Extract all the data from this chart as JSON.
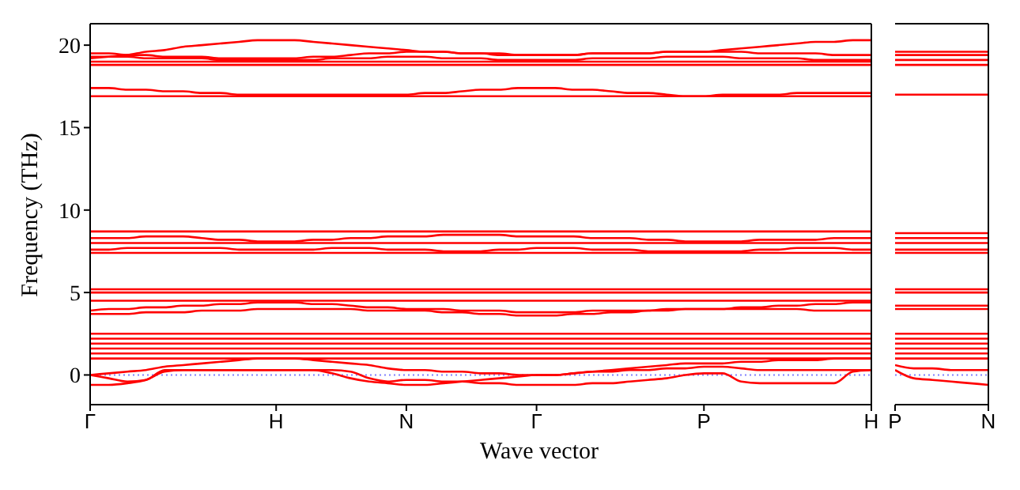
{
  "chart_data": [
    {
      "type": "line",
      "xlabel": "Wave vector",
      "ylabel": "Frequency (THz)",
      "ylim": [
        -1.8,
        21.3
      ],
      "yticks": [
        0,
        5,
        10,
        15,
        20
      ],
      "categories": [
        "Γ",
        null,
        null,
        null,
        null,
        null,
        null,
        null,
        null,
        null,
        "H",
        null,
        null,
        null,
        null,
        null,
        null,
        "N",
        null,
        null,
        null,
        null,
        null,
        null,
        "Γ",
        null,
        null,
        null,
        null,
        null,
        null,
        null,
        null,
        "P",
        null,
        null,
        null,
        null,
        null,
        null,
        null,
        null,
        "H"
      ],
      "marker": "none",
      "line_style": "solid",
      "ref_lines": [
        {
          "axis": "y",
          "value": 0,
          "color": "#8080ff",
          "line_style": "dotted"
        }
      ],
      "series": [
        {
          "color": "#ff0000",
          "values": [
            19.0,
            19.0,
            19.0,
            19.0,
            19.0,
            19.0,
            19.0,
            19.0,
            19.0,
            19.0,
            19.0,
            19.0,
            19.0,
            19.0,
            19.0,
            19.0,
            19.0,
            19.0,
            19.0,
            19.0,
            19.0,
            19.0,
            19.0,
            19.0,
            19.0,
            19.0,
            19.0,
            19.0,
            19.0,
            19.0,
            19.0,
            19.0,
            19.0,
            19.0,
            19.0,
            19.0,
            19.0,
            19.0,
            19.0,
            19.0,
            19.0,
            19.0,
            19.0
          ]
        },
        {
          "color": "#ff0000",
          "values": [
            19.2,
            19.3,
            19.4,
            19.6,
            19.7,
            19.9,
            20.0,
            20.1,
            20.2,
            20.3,
            20.3,
            20.3,
            20.2,
            20.1,
            20.0,
            19.9,
            19.8,
            19.7,
            19.6,
            19.6,
            19.5,
            19.5,
            19.4,
            19.4,
            19.4,
            19.4,
            19.4,
            19.5,
            19.5,
            19.5,
            19.5,
            19.6,
            19.6,
            19.6,
            19.7,
            19.8,
            19.9,
            20.0,
            20.1,
            20.2,
            20.2,
            20.3,
            20.3
          ]
        },
        {
          "color": "#ff0000",
          "values": [
            19.5,
            19.5,
            19.4,
            19.4,
            19.3,
            19.3,
            19.3,
            19.2,
            19.2,
            19.2,
            19.2,
            19.2,
            19.3,
            19.3,
            19.4,
            19.5,
            19.5,
            19.6,
            19.6,
            19.6,
            19.5,
            19.5,
            19.5,
            19.4,
            19.4,
            19.4,
            19.4,
            19.5,
            19.5,
            19.5,
            19.5,
            19.6,
            19.6,
            19.6,
            19.6,
            19.6,
            19.5,
            19.5,
            19.5,
            19.5,
            19.4,
            19.4,
            19.4
          ]
        },
        {
          "color": "#ff0000",
          "values": [
            19.3,
            19.3,
            19.3,
            19.2,
            19.2,
            19.2,
            19.2,
            19.1,
            19.1,
            19.1,
            19.1,
            19.1,
            19.1,
            19.2,
            19.2,
            19.2,
            19.3,
            19.3,
            19.3,
            19.2,
            19.2,
            19.2,
            19.1,
            19.1,
            19.1,
            19.1,
            19.1,
            19.2,
            19.2,
            19.2,
            19.2,
            19.3,
            19.3,
            19.3,
            19.3,
            19.2,
            19.2,
            19.2,
            19.2,
            19.1,
            19.1,
            19.1,
            19.1
          ]
        },
        {
          "color": "#ff0000",
          "values": [
            18.8,
            18.8,
            18.8,
            18.8,
            18.8,
            18.8,
            18.8,
            18.8,
            18.8,
            18.8,
            18.8,
            18.8,
            18.8,
            18.8,
            18.8,
            18.8,
            18.8,
            18.8,
            18.8,
            18.8,
            18.8,
            18.8,
            18.8,
            18.8,
            18.8,
            18.8,
            18.8,
            18.8,
            18.8,
            18.8,
            18.8,
            18.8,
            18.8,
            18.8,
            18.8,
            18.8,
            18.8,
            18.8,
            18.8,
            18.8,
            18.8,
            18.8,
            18.8
          ]
        },
        {
          "color": "#ff0000",
          "values": [
            16.9,
            16.9,
            16.9,
            16.9,
            16.9,
            16.9,
            16.9,
            16.9,
            16.9,
            16.9,
            16.9,
            16.9,
            16.9,
            16.9,
            16.9,
            16.9,
            16.9,
            16.9,
            16.9,
            16.9,
            16.9,
            16.9,
            16.9,
            16.9,
            16.9,
            16.9,
            16.9,
            16.9,
            16.9,
            16.9,
            16.9,
            16.9,
            16.9,
            16.9,
            16.9,
            16.9,
            16.9,
            16.9,
            16.9,
            16.9,
            16.9,
            16.9,
            16.9
          ]
        },
        {
          "color": "#ff0000",
          "values": [
            17.4,
            17.4,
            17.3,
            17.3,
            17.2,
            17.2,
            17.1,
            17.1,
            17.0,
            17.0,
            17.0,
            17.0,
            17.0,
            17.0,
            17.0,
            17.0,
            17.0,
            17.0,
            17.1,
            17.1,
            17.2,
            17.3,
            17.3,
            17.4,
            17.4,
            17.4,
            17.3,
            17.3,
            17.2,
            17.1,
            17.1,
            17.0,
            16.9,
            16.9,
            17.0,
            17.0,
            17.0,
            17.0,
            17.1,
            17.1,
            17.1,
            17.1,
            17.1
          ]
        },
        {
          "color": "#ff0000",
          "values": [
            8.7,
            8.7,
            8.7,
            8.7,
            8.7,
            8.7,
            8.7,
            8.7,
            8.7,
            8.7,
            8.7,
            8.7,
            8.7,
            8.7,
            8.7,
            8.7,
            8.7,
            8.7,
            8.7,
            8.7,
            8.7,
            8.7,
            8.7,
            8.7,
            8.7,
            8.7,
            8.7,
            8.7,
            8.7,
            8.7,
            8.7,
            8.7,
            8.7,
            8.7,
            8.7,
            8.7,
            8.7,
            8.7,
            8.7,
            8.7,
            8.7,
            8.7,
            8.7
          ]
        },
        {
          "color": "#ff0000",
          "values": [
            8.3,
            8.3,
            8.3,
            8.4,
            8.4,
            8.4,
            8.3,
            8.2,
            8.2,
            8.1,
            8.1,
            8.1,
            8.2,
            8.2,
            8.3,
            8.3,
            8.4,
            8.4,
            8.4,
            8.5,
            8.5,
            8.5,
            8.5,
            8.4,
            8.4,
            8.4,
            8.4,
            8.3,
            8.3,
            8.3,
            8.2,
            8.2,
            8.1,
            8.1,
            8.1,
            8.1,
            8.2,
            8.2,
            8.2,
            8.2,
            8.3,
            8.3,
            8.3
          ]
        },
        {
          "color": "#ff0000",
          "values": [
            8.0,
            8.0,
            8.0,
            8.0,
            8.0,
            8.0,
            8.0,
            8.0,
            8.0,
            8.0,
            8.0,
            8.0,
            8.0,
            8.0,
            8.0,
            8.0,
            8.0,
            8.0,
            8.0,
            8.0,
            8.0,
            8.0,
            8.0,
            8.0,
            8.0,
            8.0,
            8.0,
            8.0,
            8.0,
            8.0,
            8.0,
            8.0,
            8.0,
            8.0,
            8.0,
            8.0,
            8.0,
            8.0,
            8.0,
            8.0,
            8.0,
            8.0,
            8.0
          ]
        },
        {
          "color": "#ff0000",
          "values": [
            7.6,
            7.6,
            7.7,
            7.7,
            7.7,
            7.7,
            7.7,
            7.7,
            7.6,
            7.6,
            7.6,
            7.6,
            7.6,
            7.7,
            7.7,
            7.7,
            7.6,
            7.6,
            7.6,
            7.5,
            7.5,
            7.5,
            7.6,
            7.6,
            7.7,
            7.7,
            7.7,
            7.6,
            7.6,
            7.6,
            7.5,
            7.5,
            7.5,
            7.5,
            7.5,
            7.5,
            7.6,
            7.6,
            7.7,
            7.7,
            7.7,
            7.6,
            7.6
          ]
        },
        {
          "color": "#ff0000",
          "values": [
            7.4,
            7.4,
            7.4,
            7.4,
            7.4,
            7.4,
            7.4,
            7.4,
            7.4,
            7.4,
            7.4,
            7.4,
            7.4,
            7.4,
            7.4,
            7.4,
            7.4,
            7.4,
            7.4,
            7.4,
            7.4,
            7.4,
            7.4,
            7.4,
            7.4,
            7.4,
            7.4,
            7.4,
            7.4,
            7.4,
            7.4,
            7.4,
            7.4,
            7.4,
            7.4,
            7.4,
            7.4,
            7.4,
            7.4,
            7.4,
            7.4,
            7.4,
            7.4
          ]
        },
        {
          "color": "#ff0000",
          "values": [
            5.2,
            5.2,
            5.2,
            5.2,
            5.2,
            5.2,
            5.2,
            5.2,
            5.2,
            5.2,
            5.2,
            5.2,
            5.2,
            5.2,
            5.2,
            5.2,
            5.2,
            5.2,
            5.2,
            5.2,
            5.2,
            5.2,
            5.2,
            5.2,
            5.2,
            5.2,
            5.2,
            5.2,
            5.2,
            5.2,
            5.2,
            5.2,
            5.2,
            5.2,
            5.2,
            5.2,
            5.2,
            5.2,
            5.2,
            5.2,
            5.2,
            5.2,
            5.2
          ]
        },
        {
          "color": "#ff0000",
          "values": [
            5.0,
            5.0,
            5.0,
            5.0,
            5.0,
            5.0,
            5.0,
            5.0,
            5.0,
            5.0,
            5.0,
            5.0,
            5.0,
            5.0,
            5.0,
            5.0,
            5.0,
            5.0,
            5.0,
            5.0,
            5.0,
            5.0,
            5.0,
            5.0,
            5.0,
            5.0,
            5.0,
            5.0,
            5.0,
            5.0,
            5.0,
            5.0,
            5.0,
            5.0,
            5.0,
            5.0,
            5.0,
            5.0,
            5.0,
            5.0,
            5.0,
            5.0,
            5.0
          ]
        },
        {
          "color": "#ff0000",
          "values": [
            4.5,
            4.5,
            4.5,
            4.5,
            4.5,
            4.5,
            4.5,
            4.5,
            4.5,
            4.5,
            4.5,
            4.5,
            4.5,
            4.5,
            4.5,
            4.5,
            4.5,
            4.5,
            4.5,
            4.5,
            4.5,
            4.5,
            4.5,
            4.5,
            4.5,
            4.5,
            4.5,
            4.5,
            4.5,
            4.5,
            4.5,
            4.5,
            4.5,
            4.5,
            4.5,
            4.5,
            4.5,
            4.5,
            4.5,
            4.5,
            4.5,
            4.5,
            4.5
          ]
        },
        {
          "color": "#ff0000",
          "values": [
            3.9,
            4.0,
            4.0,
            4.1,
            4.1,
            4.2,
            4.2,
            4.3,
            4.3,
            4.4,
            4.4,
            4.4,
            4.3,
            4.3,
            4.2,
            4.1,
            4.1,
            4.0,
            4.0,
            4.0,
            3.9,
            3.9,
            3.9,
            3.8,
            3.8,
            3.8,
            3.8,
            3.9,
            3.9,
            3.9,
            3.9,
            4.0,
            4.0,
            4.0,
            4.0,
            4.1,
            4.1,
            4.2,
            4.2,
            4.3,
            4.3,
            4.4,
            4.4
          ]
        },
        {
          "color": "#ff0000",
          "values": [
            3.7,
            3.7,
            3.7,
            3.8,
            3.8,
            3.8,
            3.9,
            3.9,
            3.9,
            4.0,
            4.0,
            4.0,
            4.0,
            4.0,
            4.0,
            3.9,
            3.9,
            3.9,
            3.9,
            3.8,
            3.8,
            3.7,
            3.7,
            3.6,
            3.6,
            3.6,
            3.7,
            3.7,
            3.8,
            3.8,
            3.9,
            3.9,
            4.0,
            4.0,
            4.0,
            4.0,
            4.0,
            4.0,
            4.0,
            3.9,
            3.9,
            3.9,
            3.9
          ]
        },
        {
          "color": "#ff0000",
          "values": [
            2.5,
            2.5,
            2.5,
            2.5,
            2.5,
            2.5,
            2.5,
            2.5,
            2.5,
            2.5,
            2.5,
            2.5,
            2.5,
            2.5,
            2.5,
            2.5,
            2.5,
            2.5,
            2.5,
            2.5,
            2.5,
            2.5,
            2.5,
            2.5,
            2.5,
            2.5,
            2.5,
            2.5,
            2.5,
            2.5,
            2.5,
            2.5,
            2.5,
            2.5,
            2.5,
            2.5,
            2.5,
            2.5,
            2.5,
            2.5,
            2.5,
            2.5,
            2.5
          ]
        },
        {
          "color": "#ff0000",
          "values": [
            2.2,
            2.2,
            2.2,
            2.2,
            2.2,
            2.2,
            2.2,
            2.2,
            2.2,
            2.2,
            2.2,
            2.2,
            2.2,
            2.2,
            2.2,
            2.2,
            2.2,
            2.2,
            2.2,
            2.2,
            2.2,
            2.2,
            2.2,
            2.2,
            2.2,
            2.2,
            2.2,
            2.2,
            2.2,
            2.2,
            2.2,
            2.2,
            2.2,
            2.2,
            2.2,
            2.2,
            2.2,
            2.2,
            2.2,
            2.2,
            2.2,
            2.2,
            2.2
          ]
        },
        {
          "color": "#ff0000",
          "values": [
            1.9,
            1.9,
            1.9,
            1.9,
            1.9,
            1.9,
            1.9,
            1.9,
            1.9,
            1.9,
            1.9,
            1.9,
            1.9,
            1.9,
            1.9,
            1.9,
            1.9,
            1.9,
            1.9,
            1.9,
            1.9,
            1.9,
            1.9,
            1.9,
            1.9,
            1.9,
            1.9,
            1.9,
            1.9,
            1.9,
            1.9,
            1.9,
            1.9,
            1.9,
            1.9,
            1.9,
            1.9,
            1.9,
            1.9,
            1.9,
            1.9,
            1.9,
            1.9
          ]
        },
        {
          "color": "#ff0000",
          "values": [
            1.6,
            1.6,
            1.6,
            1.6,
            1.6,
            1.6,
            1.6,
            1.6,
            1.6,
            1.6,
            1.6,
            1.6,
            1.6,
            1.6,
            1.6,
            1.6,
            1.6,
            1.6,
            1.6,
            1.6,
            1.6,
            1.6,
            1.6,
            1.6,
            1.6,
            1.6,
            1.6,
            1.6,
            1.6,
            1.6,
            1.6,
            1.6,
            1.6,
            1.6,
            1.6,
            1.6,
            1.6,
            1.6,
            1.6,
            1.6,
            1.6,
            1.6,
            1.6
          ]
        },
        {
          "color": "#ff0000",
          "values": [
            1.3,
            1.3,
            1.3,
            1.3,
            1.3,
            1.3,
            1.3,
            1.3,
            1.3,
            1.3,
            1.3,
            1.3,
            1.3,
            1.3,
            1.3,
            1.3,
            1.3,
            1.3,
            1.3,
            1.3,
            1.3,
            1.3,
            1.3,
            1.3,
            1.3,
            1.3,
            1.3,
            1.3,
            1.3,
            1.3,
            1.3,
            1.3,
            1.3,
            1.3,
            1.3,
            1.3,
            1.3,
            1.3,
            1.3,
            1.3,
            1.3,
            1.3,
            1.3
          ]
        },
        {
          "color": "#ff0000",
          "values": [
            1.0,
            1.0,
            1.0,
            1.0,
            1.0,
            1.0,
            1.0,
            1.0,
            1.0,
            1.0,
            1.0,
            1.0,
            1.0,
            1.0,
            1.0,
            1.0,
            1.0,
            1.0,
            1.0,
            1.0,
            1.0,
            1.0,
            1.0,
            1.0,
            1.0,
            1.0,
            1.0,
            1.0,
            1.0,
            1.0,
            1.0,
            1.0,
            1.0,
            1.0,
            1.0,
            1.0,
            1.0,
            1.0,
            1.0,
            1.0,
            1.0,
            1.0,
            1.0
          ]
        },
        {
          "color": "#ff0000",
          "values": [
            0.0,
            0.1,
            0.2,
            0.3,
            0.5,
            0.6,
            0.7,
            0.8,
            0.9,
            1.0,
            1.0,
            1.0,
            0.9,
            0.8,
            0.7,
            0.6,
            0.4,
            0.3,
            0.3,
            0.2,
            0.2,
            0.1,
            0.1,
            0.0,
            0.0,
            0.0,
            0.1,
            0.2,
            0.3,
            0.4,
            0.5,
            0.6,
            0.7,
            0.7,
            0.7,
            0.8,
            0.8,
            0.9,
            0.9,
            0.9,
            1.0,
            1.0,
            1.0
          ]
        },
        {
          "color": "#ff0000",
          "values": [
            -0.6,
            -0.6,
            -0.5,
            -0.3,
            0.2,
            0.3,
            0.3,
            0.3,
            0.3,
            0.3,
            0.3,
            0.3,
            0.3,
            0.3,
            0.2,
            -0.2,
            -0.4,
            -0.3,
            -0.3,
            -0.4,
            -0.4,
            -0.5,
            -0.5,
            -0.6,
            -0.6,
            -0.6,
            -0.6,
            -0.5,
            -0.5,
            -0.4,
            -0.3,
            -0.2,
            0.0,
            0.1,
            0.1,
            -0.4,
            -0.5,
            -0.5,
            -0.5,
            -0.5,
            -0.5,
            0.2,
            0.3
          ]
        },
        {
          "color": "#ff0000",
          "values": [
            0.0,
            -0.2,
            -0.4,
            -0.3,
            0.3,
            0.3,
            0.3,
            0.3,
            0.3,
            0.3,
            0.3,
            0.3,
            0.3,
            0.1,
            -0.2,
            -0.4,
            -0.5,
            -0.6,
            -0.6,
            -0.5,
            -0.4,
            -0.3,
            -0.2,
            -0.1,
            0.0,
            0.0,
            0.1,
            0.2,
            0.2,
            0.3,
            0.3,
            0.4,
            0.4,
            0.5,
            0.5,
            0.4,
            0.3,
            0.3,
            0.3,
            0.3,
            0.3,
            0.3,
            0.3
          ]
        }
      ]
    },
    {
      "type": "line",
      "ylim": [
        -1.8,
        21.3
      ],
      "yticks": [
        0,
        5,
        10,
        15,
        20
      ],
      "tick_labels": "x",
      "categories": [
        "P",
        null,
        null,
        null,
        null,
        "N"
      ],
      "marker": "none",
      "line_style": "solid",
      "ref_lines": [
        {
          "axis": "y",
          "value": 0,
          "color": "#8080ff",
          "line_style": "dotted"
        }
      ],
      "series": [
        {
          "color": "#ff0000",
          "values": [
            19.6,
            19.6,
            19.6,
            19.6,
            19.6,
            19.6
          ]
        },
        {
          "color": "#ff0000",
          "values": [
            19.4,
            19.4,
            19.4,
            19.4,
            19.4,
            19.4
          ]
        },
        {
          "color": "#ff0000",
          "values": [
            19.1,
            19.1,
            19.1,
            19.1,
            19.1,
            19.1
          ]
        },
        {
          "color": "#ff0000",
          "values": [
            18.8,
            18.8,
            18.8,
            18.8,
            18.8,
            18.8
          ]
        },
        {
          "color": "#ff0000",
          "values": [
            17.0,
            17.0,
            17.0,
            17.0,
            17.0,
            17.0
          ]
        },
        {
          "color": "#ff0000",
          "values": [
            8.6,
            8.6,
            8.6,
            8.6,
            8.6,
            8.6
          ]
        },
        {
          "color": "#ff0000",
          "values": [
            8.3,
            8.3,
            8.3,
            8.3,
            8.3,
            8.3
          ]
        },
        {
          "color": "#ff0000",
          "values": [
            8.0,
            8.0,
            8.0,
            8.0,
            8.0,
            8.0
          ]
        },
        {
          "color": "#ff0000",
          "values": [
            7.6,
            7.6,
            7.6,
            7.6,
            7.6,
            7.6
          ]
        },
        {
          "color": "#ff0000",
          "values": [
            7.4,
            7.4,
            7.4,
            7.4,
            7.4,
            7.4
          ]
        },
        {
          "color": "#ff0000",
          "values": [
            5.2,
            5.2,
            5.2,
            5.2,
            5.2,
            5.2
          ]
        },
        {
          "color": "#ff0000",
          "values": [
            5.0,
            5.0,
            5.0,
            5.0,
            5.0,
            5.0
          ]
        },
        {
          "color": "#ff0000",
          "values": [
            4.2,
            4.2,
            4.2,
            4.2,
            4.2,
            4.2
          ]
        },
        {
          "color": "#ff0000",
          "values": [
            4.0,
            4.0,
            4.0,
            4.0,
            4.0,
            4.0
          ]
        },
        {
          "color": "#ff0000",
          "values": [
            2.5,
            2.5,
            2.5,
            2.5,
            2.5,
            2.5
          ]
        },
        {
          "color": "#ff0000",
          "values": [
            2.2,
            2.2,
            2.2,
            2.2,
            2.2,
            2.2
          ]
        },
        {
          "color": "#ff0000",
          "values": [
            1.9,
            1.9,
            1.9,
            1.9,
            1.9,
            1.9
          ]
        },
        {
          "color": "#ff0000",
          "values": [
            1.6,
            1.6,
            1.6,
            1.6,
            1.6,
            1.6
          ]
        },
        {
          "color": "#ff0000",
          "values": [
            1.3,
            1.3,
            1.3,
            1.3,
            1.3,
            1.3
          ]
        },
        {
          "color": "#ff0000",
          "values": [
            1.0,
            1.0,
            1.0,
            1.0,
            1.0,
            1.0
          ]
        },
        {
          "color": "#ff0000",
          "values": [
            0.6,
            0.4,
            0.4,
            0.3,
            0.3,
            0.3
          ]
        },
        {
          "color": "#ff0000",
          "values": [
            0.3,
            -0.2,
            -0.3,
            -0.4,
            -0.5,
            -0.6
          ]
        }
      ]
    }
  ]
}
